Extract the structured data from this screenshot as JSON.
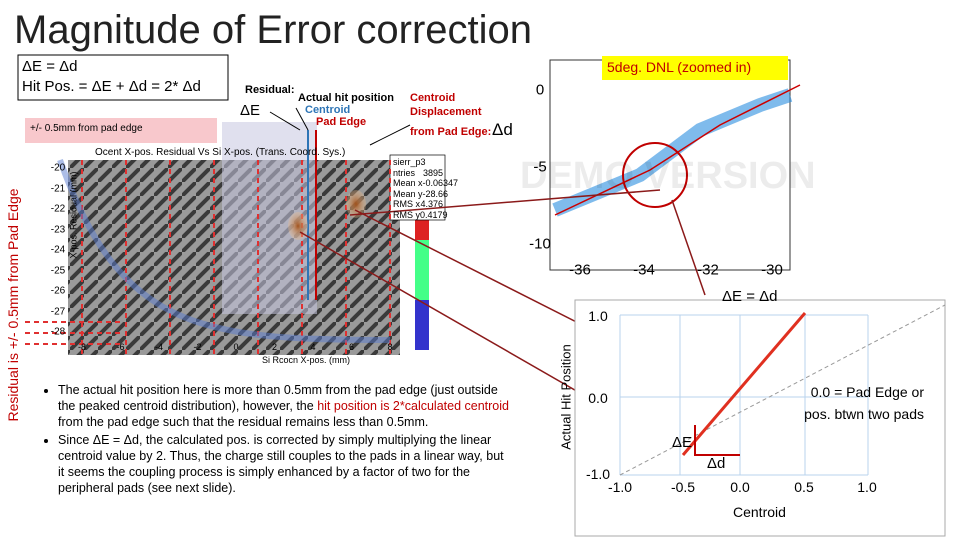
{
  "header": {
    "title": "Magnitude of Error correction"
  },
  "formula_box": {
    "line1": "ΔE = Δd",
    "line2": "Hit Pos. = ΔE + Δd = 2* Δd"
  },
  "pink_label": "+/- 0.5mm from pad edge",
  "legend": {
    "residual": "Residual:",
    "delta_e": "ΔE",
    "actual": "Actual hit position",
    "centroid": "Centroid",
    "pad_edge": "Pad Edge",
    "displacement1": "Centroid",
    "displacement2": "Displacement",
    "displacement3": "from Pad Edge:",
    "delta_d": "Δd"
  },
  "zoom_label": "5deg. DNL (zoomed in)",
  "side_label": "Residual is +/- 0.5mm from Pad Edge",
  "histogram": {
    "title": "Ocent X-pos. Residual Vs Si X-pos. (Trans. Coord. Sys.)",
    "y_label": "X-pos. Residual (mm)",
    "x_label": "Si Rcocn X-pos. (mm)",
    "yticks": [
      "-20",
      "-21",
      "-22",
      "-23",
      "-24",
      "-25",
      "-26",
      "-27",
      "-28"
    ],
    "xticks": [
      "-8",
      "-6",
      "-4",
      "-2",
      "0",
      "2",
      "4",
      "6",
      "8"
    ],
    "stats": [
      [
        "sierr_p3",
        ""
      ],
      [
        "ntries",
        "3895"
      ],
      [
        "Mean x",
        "-0.06347"
      ],
      [
        "Mean y",
        "-28.66"
      ],
      [
        "RMS x",
        "4.376"
      ],
      [
        "RMS y",
        "0.4179"
      ]
    ]
  },
  "zoom_plot": {
    "yticks": [
      "0",
      "-5",
      "-10"
    ],
    "xticks": [
      "-36",
      "-34",
      "-32",
      "-30"
    ],
    "watermark": "DEMO VERSION"
  },
  "bullets": [
    [
      "The actual hit position here is more than 0.5mm from the pad edge (just outside the peaked centroid distribution), however, the ",
      "hit position is 2*calculated centroid",
      " from the pad edge such that the residual remains less than 0.5mm."
    ],
    [
      "Since ΔE = Δd, the calculated pos. is corrected by simply multiplying the linear centroid value by 2.  Thus, the charge still couples to the pads in a linear way, but it seems the coupling process is simply enhanced by a factor of two for the peripheral pads (see next slide)."
    ]
  ],
  "diagram": {
    "title": "ΔE = Δd",
    "y_label": "Actual Hit Position",
    "x_label": "Centroid",
    "yticks": [
      "1.0",
      "0.0",
      "-1.0"
    ],
    "xticks": [
      "-1.0",
      "-0.5",
      "0.0",
      "0.5",
      "1.0"
    ],
    "note1": "0.0 = Pad Edge or",
    "note2": "pos. btwn two pads",
    "delta_e": "ΔE",
    "delta_d": "Δd"
  }
}
